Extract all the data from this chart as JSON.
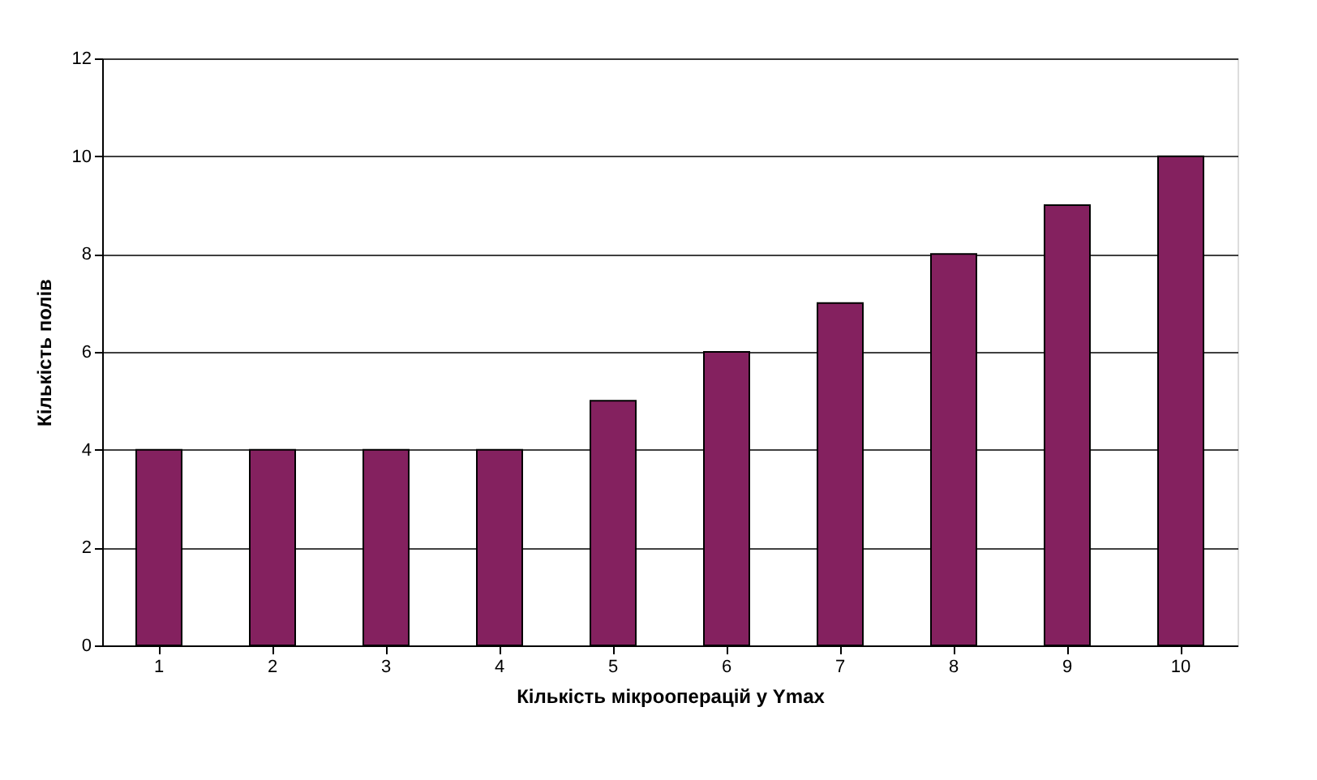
{
  "chart_data": {
    "type": "bar",
    "categories": [
      "1",
      "2",
      "3",
      "4",
      "5",
      "6",
      "7",
      "8",
      "9",
      "10"
    ],
    "values": [
      4,
      4,
      4,
      4,
      5,
      6,
      7,
      8,
      9,
      10
    ],
    "color": "#84215f",
    "xlabel": "Кількість мікрооперацій у Ymax",
    "ylabel": "Кількість полів",
    "ylim": [
      0,
      12
    ],
    "yticks": [
      0,
      2,
      4,
      6,
      8,
      10,
      12
    ],
    "grid": "y"
  }
}
